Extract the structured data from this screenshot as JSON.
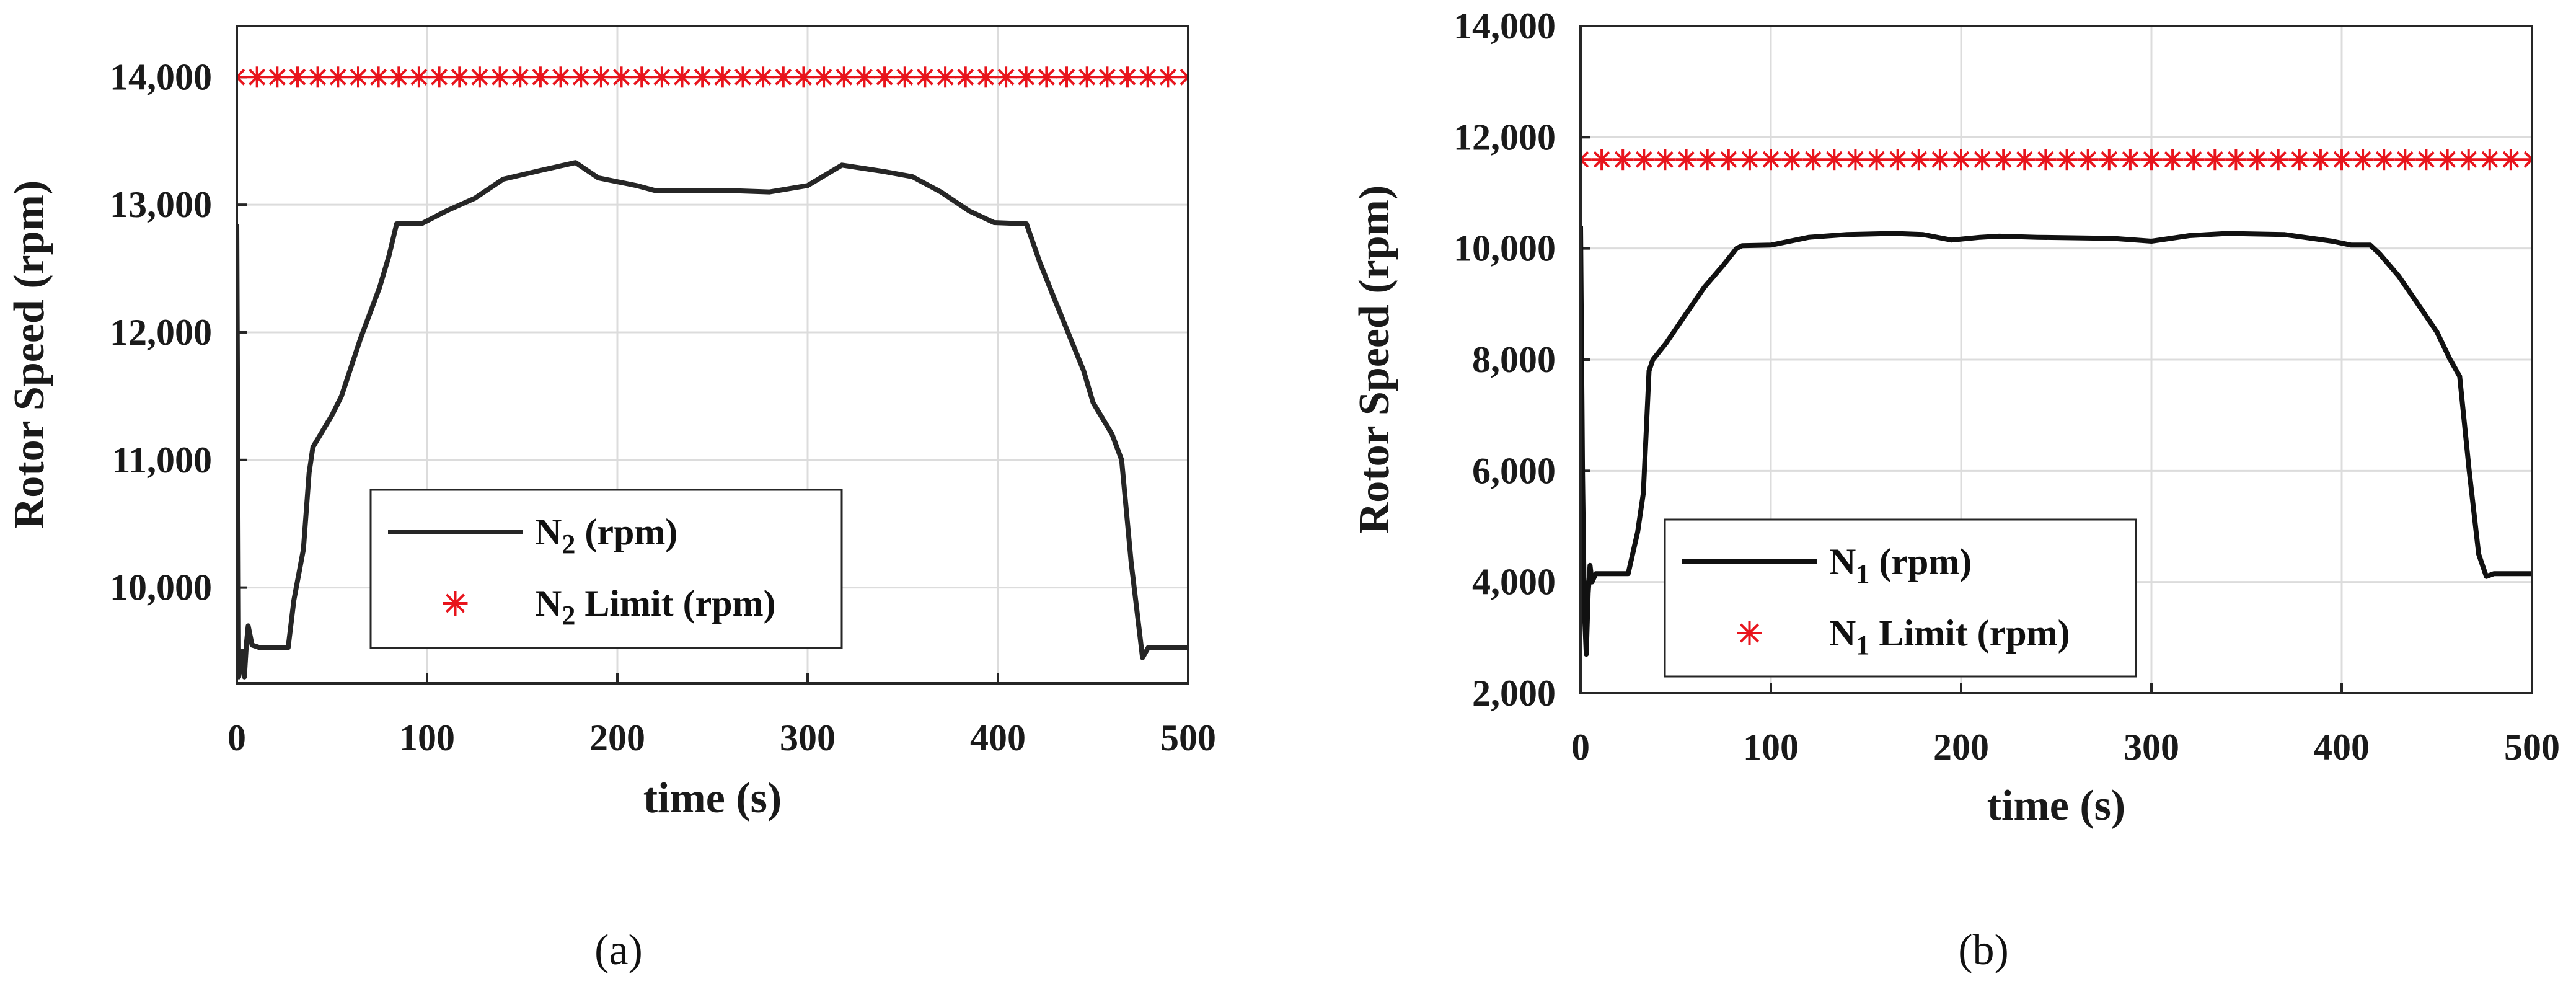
{
  "chart_data": [
    {
      "type": "line",
      "panel_label": "(a)",
      "xlabel": "time (s)",
      "ylabel": "Rotor Speed (rpm)",
      "xlim": [
        0,
        500
      ],
      "ylim": [
        9250,
        14400
      ],
      "xticks": [
        0,
        100,
        200,
        300,
        400,
        500
      ],
      "xtick_labels": [
        "0",
        "100",
        "200",
        "300",
        "400",
        "500"
      ],
      "yticks": [
        10000,
        11000,
        12000,
        13000,
        14000
      ],
      "ytick_labels": [
        "10,000",
        "11,000",
        "12,000",
        "13,000",
        "14,000"
      ],
      "grid": true,
      "legend_position": "bottom-center",
      "series": [
        {
          "name": "N",
          "name_sub": "2",
          "name_suffix": " (rpm)",
          "style": "line",
          "color": "#262626",
          "points": [
            [
              0,
              12850
            ],
            [
              1,
              9300
            ],
            [
              3,
              9500
            ],
            [
              4,
              9300
            ],
            [
              5,
              9550
            ],
            [
              6,
              9700
            ],
            [
              8,
              9550
            ],
            [
              12,
              9530
            ],
            [
              27,
              9530
            ],
            [
              30,
              9900
            ],
            [
              35,
              10300
            ],
            [
              38,
              10900
            ],
            [
              40,
              11100
            ],
            [
              50,
              11350
            ],
            [
              55,
              11500
            ],
            [
              65,
              11950
            ],
            [
              75,
              12350
            ],
            [
              80,
              12600
            ],
            [
              84,
              12850
            ],
            [
              97,
              12850
            ],
            [
              110,
              12950
            ],
            [
              125,
              13050
            ],
            [
              140,
              13200
            ],
            [
              160,
              13270
            ],
            [
              178,
              13330
            ],
            [
              190,
              13210
            ],
            [
              210,
              13150
            ],
            [
              220,
              13110
            ],
            [
              240,
              13110
            ],
            [
              260,
              13110
            ],
            [
              280,
              13100
            ],
            [
              300,
              13150
            ],
            [
              318,
              13310
            ],
            [
              340,
              13260
            ],
            [
              355,
              13220
            ],
            [
              370,
              13100
            ],
            [
              385,
              12950
            ],
            [
              398,
              12860
            ],
            [
              415,
              12850
            ],
            [
              422,
              12550
            ],
            [
              430,
              12250
            ],
            [
              445,
              11700
            ],
            [
              450,
              11450
            ],
            [
              460,
              11200
            ],
            [
              465,
              11000
            ],
            [
              470,
              10200
            ],
            [
              474,
              9700
            ],
            [
              476,
              9450
            ],
            [
              479,
              9530
            ],
            [
              500,
              9530
            ]
          ]
        },
        {
          "name": "N",
          "name_sub": "2",
          "name_suffix": " Limit (rpm)",
          "style": "marker",
          "color": "#e8141c",
          "constant": 14000,
          "n_markers": 48
        }
      ]
    },
    {
      "type": "line",
      "panel_label": "(b)",
      "xlabel": "time (s)",
      "ylabel": "Rotor Speed (rpm)",
      "xlim": [
        0,
        500
      ],
      "ylim": [
        2000,
        14000
      ],
      "xticks": [
        0,
        100,
        200,
        300,
        400,
        500
      ],
      "xtick_labels": [
        "0",
        "100",
        "200",
        "300",
        "400",
        "500"
      ],
      "yticks": [
        2000,
        4000,
        6000,
        8000,
        10000,
        12000,
        14000
      ],
      "ytick_labels": [
        "2,000",
        "4,000",
        "6,000",
        "8,000",
        "10,000",
        "12,000",
        "14,000"
      ],
      "grid": true,
      "legend_position": "bottom-left",
      "series": [
        {
          "name": "N",
          "name_sub": "1",
          "name_suffix": " (rpm)",
          "style": "line",
          "color": "#111111",
          "points": [
            [
              0,
              10400
            ],
            [
              1,
              6000
            ],
            [
              2,
              3500
            ],
            [
              3,
              2700
            ],
            [
              4,
              3800
            ],
            [
              5,
              4300
            ],
            [
              6,
              4000
            ],
            [
              8,
              4150
            ],
            [
              25,
              4150
            ],
            [
              30,
              4900
            ],
            [
              33,
              5600
            ],
            [
              36,
              7800
            ],
            [
              38,
              8000
            ],
            [
              45,
              8300
            ],
            [
              55,
              8800
            ],
            [
              65,
              9300
            ],
            [
              75,
              9700
            ],
            [
              82,
              10000
            ],
            [
              85,
              10050
            ],
            [
              100,
              10060
            ],
            [
              120,
              10200
            ],
            [
              140,
              10250
            ],
            [
              165,
              10270
            ],
            [
              180,
              10250
            ],
            [
              195,
              10150
            ],
            [
              210,
              10200
            ],
            [
              220,
              10220
            ],
            [
              240,
              10200
            ],
            [
              280,
              10180
            ],
            [
              300,
              10130
            ],
            [
              320,
              10230
            ],
            [
              340,
              10270
            ],
            [
              370,
              10250
            ],
            [
              395,
              10130
            ],
            [
              405,
              10060
            ],
            [
              415,
              10060
            ],
            [
              420,
              9900
            ],
            [
              430,
              9500
            ],
            [
              440,
              9000
            ],
            [
              450,
              8500
            ],
            [
              457,
              8000
            ],
            [
              462,
              7700
            ],
            [
              467,
              6000
            ],
            [
              472,
              4500
            ],
            [
              476,
              4100
            ],
            [
              480,
              4150
            ],
            [
              500,
              4150
            ]
          ]
        },
        {
          "name": "N",
          "name_sub": "1",
          "name_suffix": " Limit (rpm)",
          "style": "marker",
          "color": "#e8141c",
          "constant": 11600,
          "n_markers": 46
        }
      ]
    }
  ]
}
